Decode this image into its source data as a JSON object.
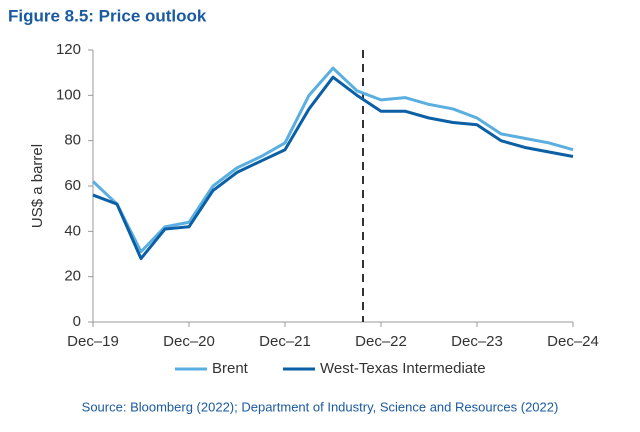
{
  "chart_data": {
    "type": "line",
    "title": "Figure 8.5: Price outlook",
    "y_label": "US$ a barrel",
    "source": "Source: Bloomberg (2022); Department of Industry, Science and Resources (2022)",
    "categories": [
      "Dec–19",
      null,
      null,
      null,
      "Dec–20",
      null,
      null,
      null,
      "Dec–21",
      null,
      null,
      null,
      "Dec–22",
      null,
      null,
      null,
      "Dec–23",
      null,
      null,
      null,
      "Dec–24"
    ],
    "series": [
      {
        "name": "Brent",
        "color": "#5aafe0",
        "values": [
          62,
          52,
          31,
          42,
          44,
          60,
          68,
          73,
          79,
          100,
          112,
          102,
          98,
          99,
          96,
          94,
          90,
          83,
          81,
          79,
          76
        ]
      },
      {
        "name": "West-Texas Intermediate",
        "color": "#0b5fa5",
        "values": [
          56,
          52,
          28,
          41,
          42,
          58,
          66,
          71,
          76,
          94,
          108,
          100,
          93,
          93,
          90,
          88,
          87,
          80,
          77,
          75,
          73
        ]
      }
    ],
    "ylim": [
      0,
      120
    ],
    "yticks": [
      0,
      20,
      40,
      60,
      80,
      100,
      120
    ],
    "grid": false,
    "legend": "bottom"
  }
}
